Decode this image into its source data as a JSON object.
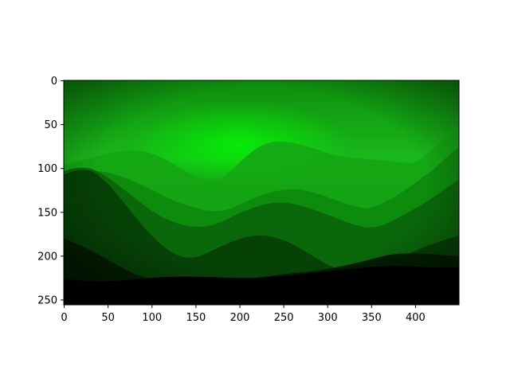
{
  "chart_data": {
    "type": "image",
    "title": "",
    "xlabel": "",
    "ylabel": "",
    "image_extent": {
      "width": 450,
      "height": 256
    },
    "xlim": [
      -0.5,
      449.5
    ],
    "ylim": [
      255.5,
      -0.5
    ],
    "xticks": [
      0,
      50,
      100,
      150,
      200,
      250,
      300,
      350,
      400
    ],
    "xtick_labels": [
      "0",
      "50",
      "100",
      "150",
      "200",
      "250",
      "300",
      "350",
      "400"
    ],
    "yticks": [
      0,
      50,
      100,
      150,
      200,
      250
    ],
    "ytick_labels": [
      "0",
      "50",
      "100",
      "150",
      "200",
      "250"
    ],
    "grid": false,
    "colors": {
      "sky_top": "#0f9a0f",
      "sky_glow": "#00e600",
      "far_ridge": "#1fb81f",
      "mid_ridge": "#0a6e0a",
      "dark_ridge": "#053a05",
      "foreground": "#000000"
    }
  }
}
